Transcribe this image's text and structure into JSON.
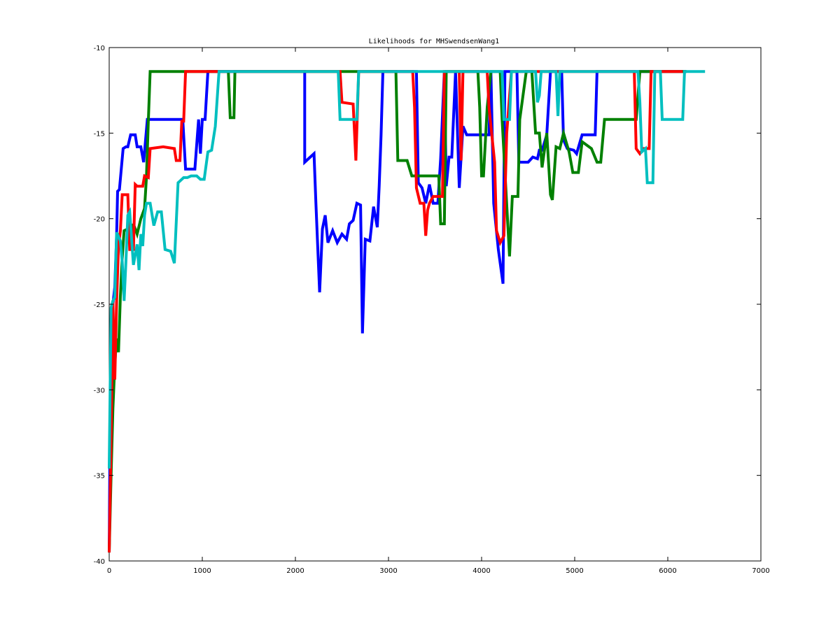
{
  "chart_data": {
    "type": "line",
    "title": "Likelihoods for MHSwendsenWang1",
    "xlabel": "",
    "ylabel": "",
    "xlim": [
      0,
      7000
    ],
    "ylim": [
      -40,
      -10
    ],
    "xticks": [
      0,
      1000,
      2000,
      3000,
      4000,
      5000,
      6000,
      7000
    ],
    "yticks": [
      -40,
      -35,
      -30,
      -25,
      -20,
      -15,
      -10
    ],
    "grid": false,
    "legend": "none",
    "series": [
      {
        "color": "#0000ff",
        "points": [
          [
            0,
            -39.5
          ],
          [
            10,
            -32
          ],
          [
            20,
            -28
          ],
          [
            40,
            -25
          ],
          [
            60,
            -24
          ],
          [
            80,
            -21
          ],
          [
            90,
            -18.4
          ],
          [
            110,
            -18.3
          ],
          [
            150,
            -15.9
          ],
          [
            180,
            -15.8
          ],
          [
            200,
            -15.8
          ],
          [
            230,
            -15.1
          ],
          [
            280,
            -15.1
          ],
          [
            300,
            -15.8
          ],
          [
            340,
            -15.8
          ],
          [
            370,
            -16.7
          ],
          [
            410,
            -14.2
          ],
          [
            790,
            -14.2
          ],
          [
            820,
            -17.1
          ],
          [
            920,
            -17.1
          ],
          [
            960,
            -14.2
          ],
          [
            980,
            -16.2
          ],
          [
            1000,
            -14.2
          ],
          [
            1030,
            -14.2
          ],
          [
            1060,
            -11.4
          ],
          [
            2100,
            -11.4
          ],
          [
            2100,
            -16.7
          ],
          [
            2200,
            -16.2
          ],
          [
            2220,
            -19.1
          ],
          [
            2260,
            -24.3
          ],
          [
            2290,
            -20.6
          ],
          [
            2320,
            -19.8
          ],
          [
            2350,
            -21.4
          ],
          [
            2400,
            -20.7
          ],
          [
            2450,
            -21.4
          ],
          [
            2500,
            -20.9
          ],
          [
            2550,
            -21.2
          ],
          [
            2580,
            -20.3
          ],
          [
            2620,
            -20.1
          ],
          [
            2660,
            -19.1
          ],
          [
            2700,
            -19.2
          ],
          [
            2720,
            -26.7
          ],
          [
            2750,
            -21.2
          ],
          [
            2800,
            -21.3
          ],
          [
            2840,
            -19.3
          ],
          [
            2880,
            -20.5
          ],
          [
            2900,
            -18.1
          ],
          [
            2920,
            -15.1
          ],
          [
            2940,
            -11.4
          ],
          [
            3300,
            -11.4
          ],
          [
            3320,
            -17.9
          ],
          [
            3360,
            -18.2
          ],
          [
            3400,
            -19.1
          ],
          [
            3440,
            -18.0
          ],
          [
            3480,
            -19.1
          ],
          [
            3530,
            -19.1
          ],
          [
            3560,
            -16.5
          ],
          [
            3600,
            -11.4
          ],
          [
            3620,
            -18.1
          ],
          [
            3650,
            -16.4
          ],
          [
            3680,
            -16.4
          ],
          [
            3720,
            -11.4
          ],
          [
            3760,
            -18.2
          ],
          [
            3800,
            -14.6
          ],
          [
            3840,
            -15.1
          ],
          [
            4080,
            -15.1
          ],
          [
            4100,
            -11.4
          ],
          [
            4130,
            -19.1
          ],
          [
            4180,
            -21.8
          ],
          [
            4200,
            -22.6
          ],
          [
            4230,
            -23.8
          ],
          [
            4250,
            -11.4
          ],
          [
            4380,
            -11.4
          ],
          [
            4400,
            -16.7
          ],
          [
            4500,
            -16.7
          ],
          [
            4550,
            -16.4
          ],
          [
            4600,
            -16.5
          ],
          [
            4620,
            -16.0
          ],
          [
            4650,
            -16.0
          ],
          [
            4700,
            -15.1
          ],
          [
            4740,
            -11.4
          ],
          [
            4860,
            -11.4
          ],
          [
            4880,
            -15.4
          ],
          [
            4920,
            -15.9
          ],
          [
            4990,
            -16.0
          ],
          [
            5020,
            -16.2
          ],
          [
            5080,
            -15.1
          ],
          [
            5220,
            -15.1
          ],
          [
            5240,
            -11.4
          ],
          [
            6200,
            -11.4
          ]
        ]
      },
      {
        "color": "#008000",
        "points": [
          [
            0,
            -39.5
          ],
          [
            20,
            -35
          ],
          [
            40,
            -31.1
          ],
          [
            60,
            -28.5
          ],
          [
            80,
            -27.0
          ],
          [
            100,
            -27.8
          ],
          [
            120,
            -24.5
          ],
          [
            140,
            -22.3
          ],
          [
            160,
            -20.7
          ],
          [
            200,
            -20.6
          ],
          [
            240,
            -21.1
          ],
          [
            260,
            -20.3
          ],
          [
            300,
            -20.9
          ],
          [
            340,
            -20.0
          ],
          [
            380,
            -19.4
          ],
          [
            400,
            -17.6
          ],
          [
            420,
            -14.3
          ],
          [
            440,
            -11.4
          ],
          [
            1280,
            -11.4
          ],
          [
            1300,
            -14.1
          ],
          [
            1340,
            -14.1
          ],
          [
            1350,
            -11.4
          ],
          [
            3080,
            -11.4
          ],
          [
            3100,
            -16.6
          ],
          [
            3200,
            -16.6
          ],
          [
            3250,
            -17.5
          ],
          [
            3540,
            -17.5
          ],
          [
            3560,
            -20.3
          ],
          [
            3600,
            -20.3
          ],
          [
            3620,
            -11.4
          ],
          [
            3960,
            -11.4
          ],
          [
            3980,
            -13.5
          ],
          [
            4000,
            -17.5
          ],
          [
            4020,
            -17.5
          ],
          [
            4060,
            -13.5
          ],
          [
            4100,
            -11.4
          ],
          [
            4200,
            -11.4
          ],
          [
            4220,
            -14.2
          ],
          [
            4300,
            -22.2
          ],
          [
            4330,
            -18.7
          ],
          [
            4390,
            -18.7
          ],
          [
            4410,
            -14.2
          ],
          [
            4480,
            -11.4
          ],
          [
            4540,
            -11.4
          ],
          [
            4580,
            -15.0
          ],
          [
            4620,
            -15.0
          ],
          [
            4650,
            -17.0
          ],
          [
            4700,
            -15.0
          ],
          [
            4740,
            -18.6
          ],
          [
            4760,
            -18.9
          ],
          [
            4800,
            -15.8
          ],
          [
            4840,
            -15.9
          ],
          [
            4880,
            -15.0
          ],
          [
            4940,
            -16.1
          ],
          [
            4980,
            -17.3
          ],
          [
            5040,
            -17.3
          ],
          [
            5080,
            -15.5
          ],
          [
            5180,
            -15.9
          ],
          [
            5240,
            -16.7
          ],
          [
            5280,
            -16.7
          ],
          [
            5320,
            -14.2
          ],
          [
            5660,
            -14.2
          ],
          [
            5700,
            -11.4
          ],
          [
            6200,
            -11.4
          ]
        ]
      },
      {
        "color": "#ff0000",
        "points": [
          [
            0,
            -39.5
          ],
          [
            20,
            -33
          ],
          [
            40,
            -24.8
          ],
          [
            60,
            -29.4
          ],
          [
            80,
            -24.8
          ],
          [
            100,
            -21.6
          ],
          [
            120,
            -20.7
          ],
          [
            140,
            -18.6
          ],
          [
            200,
            -18.6
          ],
          [
            220,
            -21.8
          ],
          [
            260,
            -21.8
          ],
          [
            280,
            -18.0
          ],
          [
            300,
            -18.1
          ],
          [
            360,
            -18.1
          ],
          [
            380,
            -17.5
          ],
          [
            420,
            -17.6
          ],
          [
            440,
            -15.9
          ],
          [
            580,
            -15.8
          ],
          [
            700,
            -15.9
          ],
          [
            720,
            -16.6
          ],
          [
            760,
            -16.6
          ],
          [
            780,
            -14.3
          ],
          [
            800,
            -14.3
          ],
          [
            820,
            -11.4
          ],
          [
            2480,
            -11.4
          ],
          [
            2500,
            -13.2
          ],
          [
            2620,
            -13.3
          ],
          [
            2650,
            -16.6
          ],
          [
            2680,
            -11.4
          ],
          [
            3260,
            -11.4
          ],
          [
            3280,
            -13.5
          ],
          [
            3300,
            -18.2
          ],
          [
            3340,
            -19.1
          ],
          [
            3380,
            -19.1
          ],
          [
            3400,
            -21.0
          ],
          [
            3420,
            -19.5
          ],
          [
            3440,
            -19.1
          ],
          [
            3480,
            -18.7
          ],
          [
            3580,
            -18.7
          ],
          [
            3600,
            -11.4
          ],
          [
            3760,
            -11.4
          ],
          [
            3780,
            -16.6
          ],
          [
            3800,
            -11.4
          ],
          [
            4060,
            -11.4
          ],
          [
            4080,
            -13.5
          ],
          [
            4140,
            -16.7
          ],
          [
            4160,
            -20.7
          ],
          [
            4200,
            -21.4
          ],
          [
            4240,
            -21.0
          ],
          [
            4270,
            -15.0
          ],
          [
            4320,
            -11.4
          ],
          [
            5640,
            -11.4
          ],
          [
            5660,
            -15.9
          ],
          [
            5700,
            -16.2
          ],
          [
            5740,
            -15.9
          ],
          [
            5800,
            -15.9
          ],
          [
            5820,
            -11.4
          ],
          [
            6160,
            -11.4
          ]
        ]
      },
      {
        "color": "#00bfbf",
        "points": [
          [
            0,
            -34.6
          ],
          [
            20,
            -25.2
          ],
          [
            40,
            -24.8
          ],
          [
            60,
            -24.6
          ],
          [
            80,
            -20.8
          ],
          [
            120,
            -21.3
          ],
          [
            140,
            -22.5
          ],
          [
            160,
            -24.8
          ],
          [
            180,
            -22.5
          ],
          [
            200,
            -19.8
          ],
          [
            220,
            -19.6
          ],
          [
            260,
            -22.7
          ],
          [
            300,
            -21.5
          ],
          [
            320,
            -23.0
          ],
          [
            340,
            -20.9
          ],
          [
            360,
            -21.6
          ],
          [
            380,
            -19.8
          ],
          [
            400,
            -19.1
          ],
          [
            440,
            -19.1
          ],
          [
            480,
            -20.4
          ],
          [
            520,
            -19.6
          ],
          [
            560,
            -19.6
          ],
          [
            600,
            -21.8
          ],
          [
            660,
            -21.9
          ],
          [
            700,
            -22.6
          ],
          [
            740,
            -17.9
          ],
          [
            800,
            -17.6
          ],
          [
            840,
            -17.6
          ],
          [
            880,
            -17.5
          ],
          [
            940,
            -17.5
          ],
          [
            980,
            -17.7
          ],
          [
            1020,
            -17.7
          ],
          [
            1060,
            -16.1
          ],
          [
            1100,
            -16.0
          ],
          [
            1140,
            -14.6
          ],
          [
            1180,
            -11.4
          ],
          [
            2460,
            -11.4
          ],
          [
            2480,
            -14.2
          ],
          [
            2660,
            -14.2
          ],
          [
            2680,
            -11.4
          ],
          [
            4220,
            -11.4
          ],
          [
            4240,
            -14.2
          ],
          [
            4300,
            -14.2
          ],
          [
            4320,
            -11.4
          ],
          [
            4580,
            -11.4
          ],
          [
            4600,
            -13.2
          ],
          [
            4620,
            -12.8
          ],
          [
            4640,
            -11.4
          ],
          [
            4800,
            -11.4
          ],
          [
            4820,
            -14.0
          ],
          [
            4840,
            -11.4
          ],
          [
            5680,
            -11.4
          ],
          [
            5700,
            -13.2
          ],
          [
            5720,
            -16.1
          ],
          [
            5760,
            -15.9
          ],
          [
            5780,
            -17.9
          ],
          [
            5840,
            -17.9
          ],
          [
            5860,
            -11.4
          ],
          [
            5920,
            -11.4
          ],
          [
            5940,
            -14.2
          ],
          [
            6160,
            -14.2
          ],
          [
            6180,
            -11.4
          ],
          [
            6400,
            -11.4
          ]
        ]
      }
    ]
  }
}
